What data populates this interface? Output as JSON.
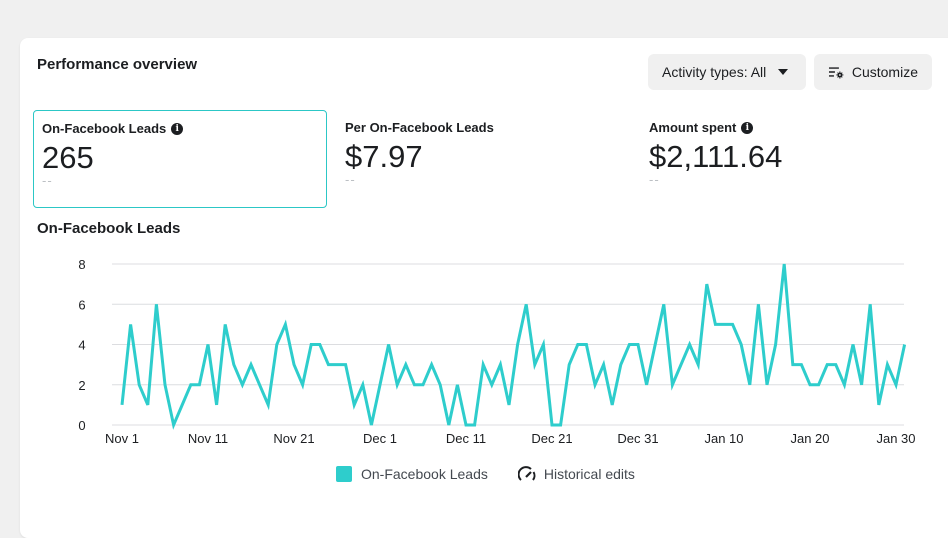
{
  "header": {
    "title": "Performance overview",
    "activity_button": "Activity types: All",
    "customize_button": "Customize"
  },
  "metrics": [
    {
      "label": "On-Facebook Leads",
      "value": "265",
      "compare": "--",
      "info": true,
      "selected": true
    },
    {
      "label": "Per On-Facebook Leads",
      "value": "$7.97",
      "compare": "--",
      "info": false,
      "selected": false
    },
    {
      "label": "Amount spent",
      "value": "$2,111.64",
      "compare": "--",
      "info": true,
      "selected": false
    }
  ],
  "legend": {
    "series": "On-Facebook Leads",
    "historical": "Historical edits"
  },
  "chart_data": {
    "type": "line",
    "title": "On-Facebook Leads",
    "x_start": "Nov 1",
    "x_end": "Jan 31",
    "x_tick_labels": [
      "Nov 1",
      "Nov 11",
      "Nov 21",
      "Dec 1",
      "Dec 11",
      "Dec 21",
      "Dec 31",
      "Jan 10",
      "Jan 20",
      "Jan 30"
    ],
    "y_ticks": [
      0,
      2,
      4,
      6,
      8
    ],
    "ylim": [
      0,
      8
    ],
    "grid": true,
    "legend_placement": "bottom",
    "color": "#2ecdcc",
    "series": [
      {
        "name": "On-Facebook Leads",
        "values": [
          1,
          5,
          2,
          1,
          6,
          2,
          0,
          1,
          2,
          2,
          4,
          1,
          5,
          3,
          2,
          3,
          2,
          1,
          4,
          5,
          3,
          2,
          4,
          4,
          3,
          3,
          3,
          1,
          2,
          0,
          2,
          4,
          2,
          3,
          2,
          2,
          3,
          2,
          0,
          2,
          0,
          0,
          3,
          2,
          3,
          1,
          4,
          6,
          3,
          4,
          0,
          0,
          3,
          4,
          4,
          2,
          3,
          1,
          3,
          4,
          4,
          2,
          4,
          6,
          2,
          3,
          4,
          3,
          7,
          5,
          5,
          5,
          4,
          2,
          6,
          2,
          4,
          8,
          3,
          3,
          2,
          2,
          3,
          3,
          2,
          4,
          2,
          6,
          1,
          3,
          2,
          4
        ]
      }
    ]
  }
}
